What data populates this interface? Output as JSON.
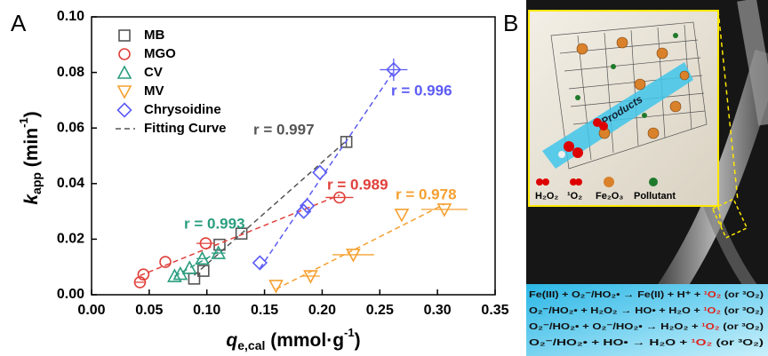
{
  "chart_data": {
    "type": "scatter",
    "panel_label": "A",
    "xlabel": [
      "q",
      "e,cal",
      " (mmol·g",
      "-1",
      ")"
    ],
    "ylabel": [
      "k",
      "app",
      " (min",
      "-1",
      ")"
    ],
    "xlim": [
      0,
      0.35
    ],
    "ylim": [
      0,
      0.1
    ],
    "xticks": [
      {
        "value": 0,
        "label": "0.00"
      },
      0.05,
      {
        "value": 0.1,
        "label": "0.10"
      },
      0.15,
      {
        "value": 0.2,
        "label": "0.20"
      },
      0.25,
      {
        "value": 0.3,
        "label": "0.30"
      },
      0.35
    ],
    "yticks": [
      {
        "value": 0,
        "label": "0.00"
      },
      0.02,
      0.04,
      0.06,
      0.08,
      {
        "value": 0.1,
        "label": "0.10"
      }
    ],
    "legend": "upper left",
    "fit_label": "Fitting Curve",
    "series": [
      {
        "name": "MB",
        "color": "#555555",
        "marker": "square",
        "x": [
          0.089,
          0.097,
          0.111,
          0.13,
          0.221
        ],
        "values": [
          0.0058,
          0.0086,
          0.018,
          0.022,
          0.055
        ],
        "xerr": [
          null,
          null,
          null,
          null,
          null
        ],
        "yerr": [
          null,
          null,
          null,
          null,
          0.002
        ],
        "r_label": "r = 0.997"
      },
      {
        "name": "MGO",
        "color": "#e0403a",
        "marker": "circle",
        "x": [
          0.042,
          0.045,
          0.064,
          0.099,
          0.215
        ],
        "values": [
          0.0045,
          0.0073,
          0.0118,
          0.0185,
          0.035
        ],
        "xerr": [
          0.005,
          null,
          null,
          0.008,
          0.012
        ],
        "yerr": [
          null,
          null,
          null,
          null,
          null
        ],
        "r_label": "r = 0.989"
      },
      {
        "name": "CV",
        "color": "#2a9d7f",
        "marker": "triangle-up",
        "x": [
          0.072,
          0.077,
          0.085,
          0.096,
          0.11
        ],
        "values": [
          0.0067,
          0.0075,
          0.0096,
          0.013,
          0.015
        ],
        "xerr": [
          null,
          null,
          null,
          0.005,
          0.006
        ],
        "yerr": [
          null,
          null,
          null,
          null,
          null
        ],
        "r_label": "r = 0.993"
      },
      {
        "name": "MV",
        "color": "#f5a030",
        "marker": "triangle-down",
        "x": [
          0.16,
          0.19,
          0.227,
          0.269,
          0.306
        ],
        "values": [
          0.0032,
          0.0067,
          0.0144,
          0.0288,
          0.0307
        ],
        "xerr": [
          null,
          0.008,
          0.018,
          null,
          0.02
        ],
        "yerr": [
          null,
          null,
          null,
          null,
          null
        ],
        "r_label": "r = 0.978"
      },
      {
        "name": "Chrysoidine",
        "color": "#5b5bf5",
        "marker": "diamond",
        "x": [
          0.146,
          0.184,
          0.187,
          0.198,
          0.262
        ],
        "values": [
          0.0115,
          0.03,
          0.032,
          0.044,
          0.081
        ],
        "xerr": [
          null,
          null,
          null,
          null,
          0.012
        ],
        "yerr": [
          null,
          null,
          null,
          null,
          0.004
        ],
        "r_label": "r = 0.996"
      }
    ]
  },
  "panel_b": {
    "label": "B",
    "arrow_label": "Products",
    "inset_legend": [
      "H₂O₂",
      "¹O₂",
      "Fe₂O₃",
      "Pollutant"
    ],
    "equations": [
      {
        "before": "Fe(III) + O₂⁻/HO₂• → Fe(II) + H⁺ + ",
        "highlight": "¹O₂",
        "after": " (or ³O₂)"
      },
      {
        "before": "O₂⁻/HO₂• + H₂O₂ → HO• + H₂O + ",
        "highlight": "¹O₂",
        "after": " (or ³O₂)"
      },
      {
        "before": "O₂⁻/HO₂• + O₂⁻/HO₂• → H₂O₂ + ",
        "highlight": "¹O₂",
        "after": " (or ³O₂)"
      },
      {
        "before": "O₂⁻/HO₂• + HO• → H₂O + ",
        "highlight": "¹O₂",
        "after": " (or ³O₂)"
      }
    ]
  }
}
